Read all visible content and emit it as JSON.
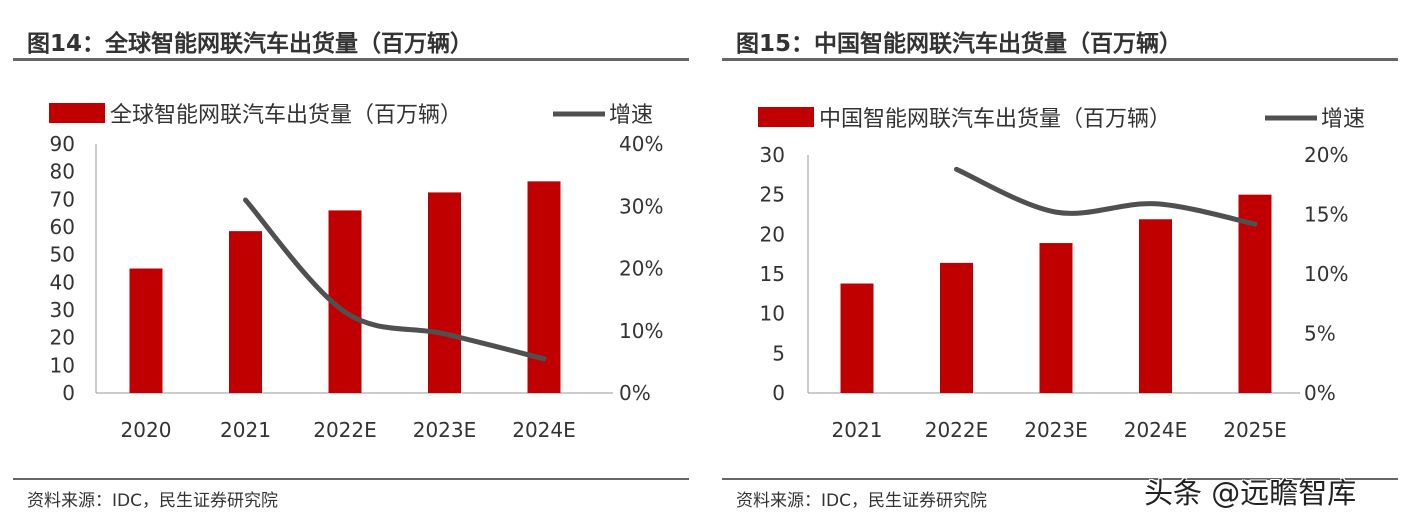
{
  "watermark": "头条 @远瞻智库",
  "chart_data": [
    {
      "type": "bar",
      "title": "图14：全球智能网联汽车出货量（百万辆）",
      "categories": [
        "2020",
        "2021",
        "2022E",
        "2023E",
        "2024E"
      ],
      "series": [
        {
          "name": "全球智能网联汽车出货量（百万辆）",
          "type": "bar",
          "axis": "left",
          "values": [
            45,
            58.5,
            66,
            72.5,
            76.5
          ],
          "color": "#c00000"
        },
        {
          "name": "增速",
          "type": "line",
          "axis": "right",
          "values": [
            null,
            0.31,
            0.13,
            0.095,
            0.055
          ],
          "color": "#505050"
        }
      ],
      "ylim": [
        0,
        90
      ],
      "yticks": [
        "0",
        "10",
        "20",
        "30",
        "40",
        "50",
        "60",
        "70",
        "80",
        "90"
      ],
      "y2lim": [
        0,
        0.4
      ],
      "y2ticks": [
        "0%",
        "10%",
        "20%",
        "30%",
        "40%"
      ],
      "legend": "top",
      "grid": false,
      "source": "资料来源：IDC，民生证券研究院"
    },
    {
      "type": "bar",
      "title": "图15：中国智能网联汽车出货量（百万辆）",
      "categories": [
        "2021",
        "2022E",
        "2023E",
        "2024E",
        "2025E"
      ],
      "series": [
        {
          "name": "中国智能网联汽车出货量（百万辆）",
          "type": "bar",
          "axis": "left",
          "values": [
            13.8,
            16.4,
            18.9,
            21.9,
            25
          ],
          "color": "#c00000"
        },
        {
          "name": "增速",
          "type": "line",
          "axis": "right",
          "values": [
            null,
            0.188,
            0.152,
            0.159,
            0.142
          ],
          "color": "#505050"
        }
      ],
      "ylim": [
        0,
        30
      ],
      "yticks": [
        "0",
        "5",
        "10",
        "15",
        "20",
        "25",
        "30"
      ],
      "y2lim": [
        0,
        0.2
      ],
      "y2ticks": [
        "0%",
        "5%",
        "10%",
        "15%",
        "20%"
      ],
      "legend": "top",
      "grid": false,
      "source": "资料来源：IDC，民生证券研究院"
    }
  ]
}
